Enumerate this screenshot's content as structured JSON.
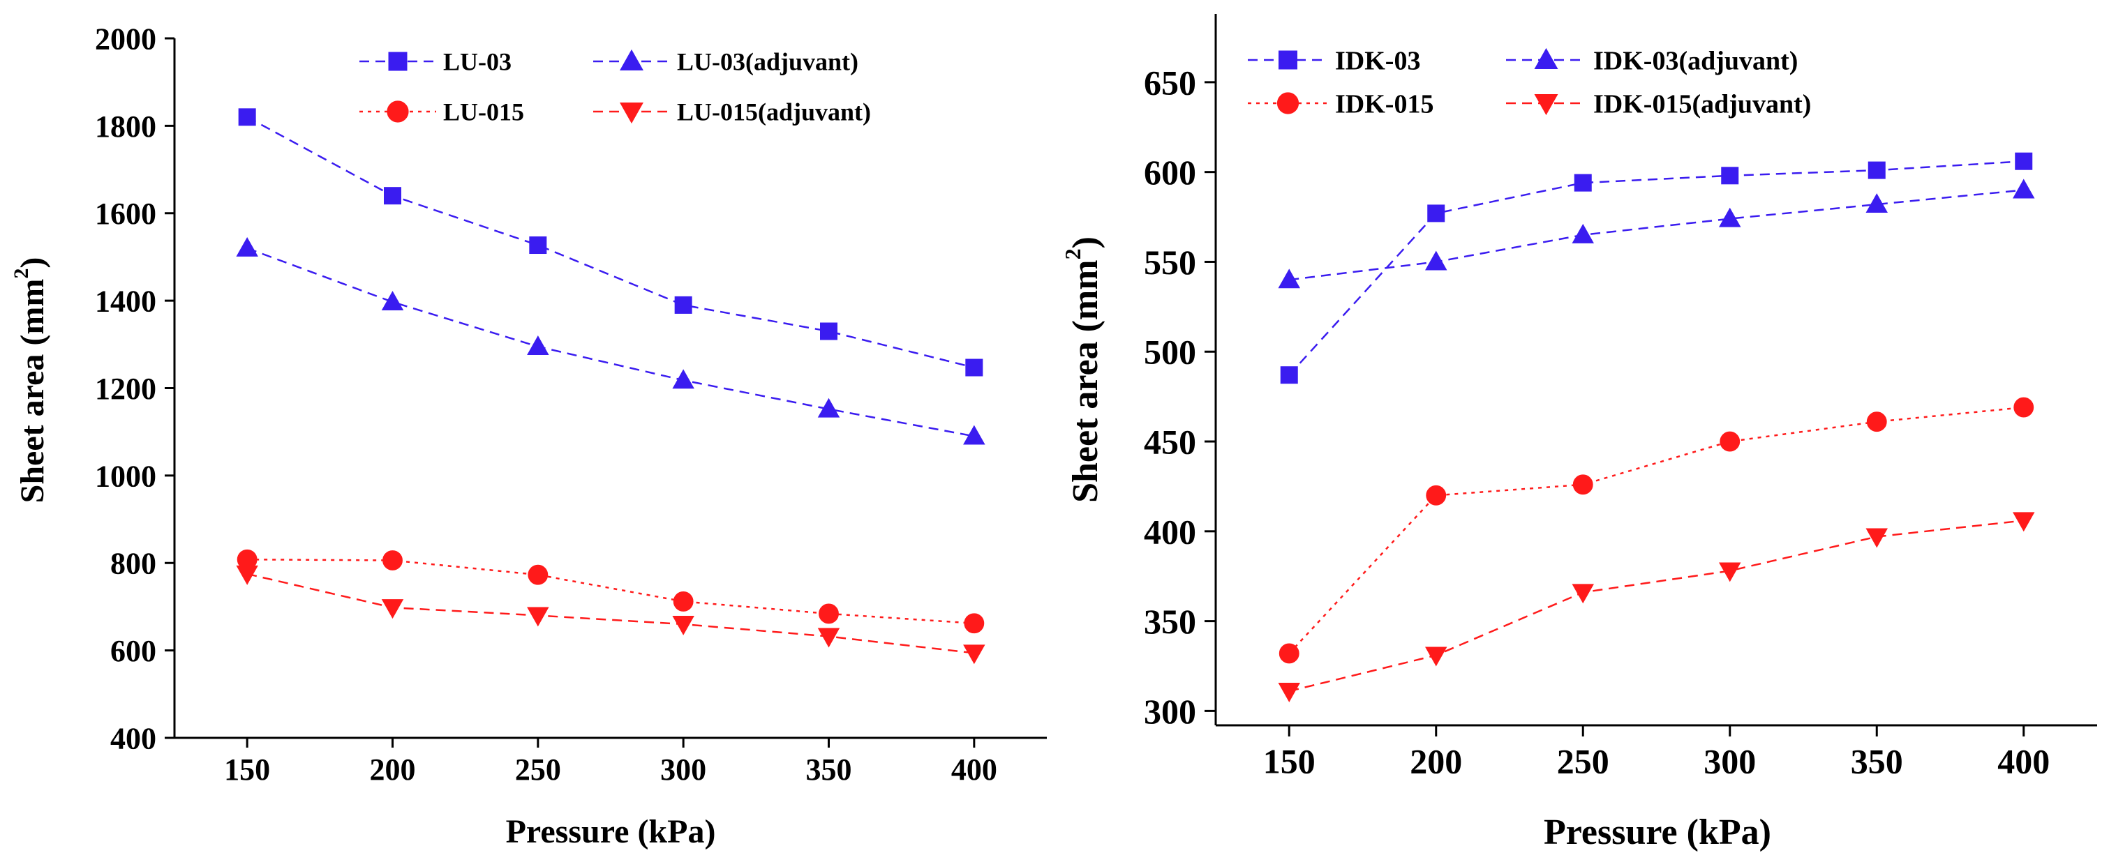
{
  "chart_data": [
    {
      "type": "line",
      "xlabel": "Pressure (kPa)",
      "ylabel_main": "Sheet area (mm",
      "ylabel_sup": "2",
      "ylabel_end": ")",
      "xlim": [
        125,
        425
      ],
      "ylim": [
        400,
        2000
      ],
      "x": [
        150,
        200,
        250,
        300,
        350,
        400
      ],
      "xticks": [
        "150",
        "200",
        "250",
        "300",
        "350",
        "400"
      ],
      "yticks": [
        "400",
        "600",
        "800",
        "1000",
        "1200",
        "1400",
        "1600",
        "1800",
        "2000"
      ],
      "ytick_values": [
        400,
        600,
        800,
        1000,
        1200,
        1400,
        1600,
        1800,
        2000
      ],
      "grid": false,
      "legend_position": "top-right",
      "series": [
        {
          "name": "LU-03",
          "values": [
            1820,
            1640,
            1527,
            1390,
            1330,
            1247
          ],
          "color": "#3a1cf0",
          "marker": "square",
          "dash": "dashed"
        },
        {
          "name": "LU-03(adjuvant)",
          "values": [
            1520,
            1397,
            1295,
            1218,
            1152,
            1090
          ],
          "color": "#3a1cf0",
          "marker": "triangle-up",
          "dash": "dashed"
        },
        {
          "name": "LU-015",
          "values": [
            808,
            806,
            773,
            712,
            684,
            662
          ],
          "color": "#ff1a1a",
          "marker": "circle",
          "dash": "dotted"
        },
        {
          "name": "LU-015(adjuvant)",
          "values": [
            775,
            698,
            680,
            660,
            632,
            594
          ],
          "color": "#ff1a1a",
          "marker": "triangle-down",
          "dash": "dashed"
        }
      ]
    },
    {
      "type": "line",
      "xlabel": "Pressure (kPa)",
      "ylabel_main": "Sheet area (mm",
      "ylabel_sup": "2",
      "ylabel_end": ")",
      "xlim": [
        125,
        425
      ],
      "ylim": [
        292,
        688
      ],
      "x": [
        150,
        200,
        250,
        300,
        350,
        400
      ],
      "xticks": [
        "150",
        "200",
        "250",
        "300",
        "350",
        "400"
      ],
      "yticks": [
        "300",
        "350",
        "400",
        "450",
        "500",
        "550",
        "600",
        "650"
      ],
      "ytick_values": [
        300,
        350,
        400,
        450,
        500,
        550,
        600,
        650
      ],
      "grid": false,
      "legend_position": "top-left",
      "series": [
        {
          "name": "IDK-03",
          "values": [
            487,
            577,
            594,
            598,
            601,
            606
          ],
          "color": "#3a1cf0",
          "marker": "square",
          "dash": "dashed"
        },
        {
          "name": "IDK-03(adjuvant)",
          "values": [
            540,
            550,
            565,
            574,
            582,
            590
          ],
          "color": "#3a1cf0",
          "marker": "triangle-up",
          "dash": "dashed"
        },
        {
          "name": "IDK-015",
          "values": [
            332,
            420,
            426,
            450,
            461,
            469
          ],
          "color": "#ff1a1a",
          "marker": "circle",
          "dash": "dotted"
        },
        {
          "name": "IDK-015(adjuvant)",
          "values": [
            311,
            331,
            366,
            378,
            397,
            406
          ],
          "color": "#ff1a1a",
          "marker": "triangle-down",
          "dash": "dashed"
        }
      ]
    }
  ]
}
